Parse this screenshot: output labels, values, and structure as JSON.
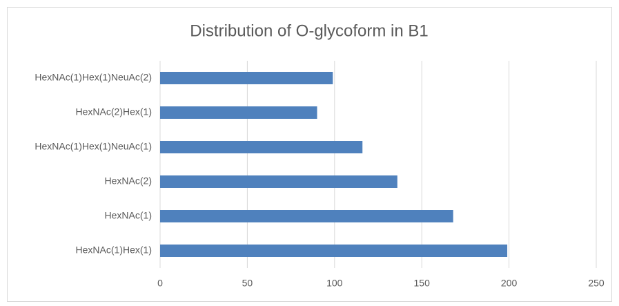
{
  "chart_data": {
    "type": "bar",
    "orientation": "horizontal",
    "title": "Distribution of O-glycoform in B1",
    "categories": [
      "HexNAc(1)Hex(1)NeuAc(2)",
      "HexNAc(2)Hex(1)",
      "HexNAc(1)Hex(1)NeuAc(1)",
      "HexNAc(2)",
      "HexNAc(1)",
      "HexNAc(1)Hex(1)"
    ],
    "values": [
      99,
      90,
      116,
      136,
      168,
      199
    ],
    "color": "#4f81bd",
    "xlim": [
      0,
      250
    ],
    "xticks": [
      0,
      50,
      100,
      150,
      200,
      250
    ],
    "grid": true
  }
}
